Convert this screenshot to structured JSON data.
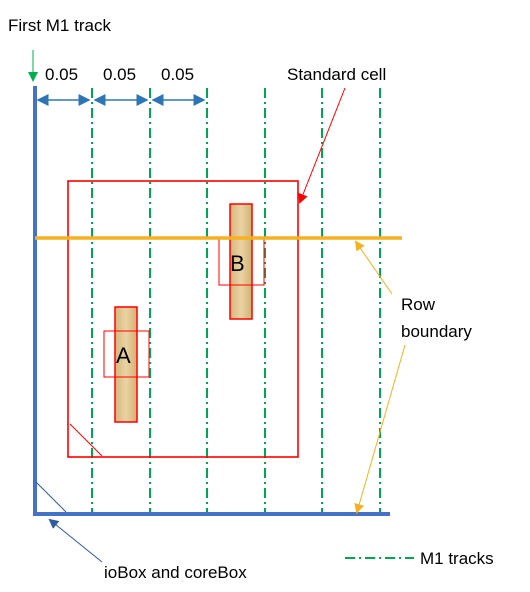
{
  "labels": {
    "first_track": "First M1 track",
    "pitch_1": "0.05",
    "pitch_2": "0.05",
    "pitch_3": "0.05",
    "standard_cell": "Standard cell",
    "row_line1": "Row",
    "row_line2": "boundary",
    "iobox": "ioBox and coreBox",
    "legend": "M1 tracks",
    "pin_a": "A",
    "pin_b": "B"
  },
  "colors": {
    "box": "#4472c4",
    "track": "#00a651",
    "cell": "#ff0000",
    "row": "#f5b120",
    "pin_fill": "#ddc08a",
    "dim_arrow": "#2e75b6"
  }
}
